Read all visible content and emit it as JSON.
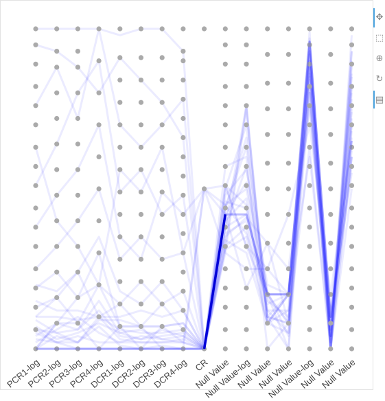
{
  "chart_data": {
    "type": "parallel-coordinates",
    "axes": [
      "PCR1-log",
      "PCR2-log",
      "PCR3-log",
      "PCR4-log",
      "DCR1-log",
      "DCR2-log",
      "DCR3-log",
      "DCR4-log",
      "CR",
      "Null Value",
      "Null Value-log",
      "Null Value",
      "Null Value",
      "Null Value-log",
      "Null Value",
      "Null Value"
    ],
    "axis_label_rotation": -40,
    "dot_color": "#aaaaaa",
    "line_color": "#2020ff",
    "highlight_color": "#0000d8",
    "grid_levels": [
      [
        0,
        0.06,
        0.13,
        0.19,
        0.25,
        0.32,
        0.38,
        0.44,
        0.51,
        0.57,
        0.63,
        0.7,
        0.76,
        0.82,
        0.89,
        0.95,
        1
      ],
      [
        0,
        0.08,
        0.16,
        0.24,
        0.32,
        0.4,
        0.48,
        0.56,
        0.64,
        0.72,
        0.8,
        0.88,
        0.93,
        1
      ],
      [
        0,
        0.08,
        0.16,
        0.24,
        0.32,
        0.4,
        0.48,
        0.56,
        0.64,
        0.72,
        0.8,
        0.88,
        0.93,
        1
      ],
      [
        0,
        0.1,
        0.2,
        0.3,
        0.4,
        0.5,
        0.6,
        0.7,
        0.8,
        0.9,
        1
      ],
      [
        0,
        0.07,
        0.14,
        0.21,
        0.28,
        0.35,
        0.42,
        0.49,
        0.56,
        0.63,
        0.7,
        0.77,
        0.84,
        0.91,
        1
      ],
      [
        0,
        0.07,
        0.14,
        0.21,
        0.28,
        0.35,
        0.42,
        0.49,
        0.56,
        0.63,
        0.7,
        0.77,
        0.84,
        0.91,
        1
      ],
      [
        0,
        0.07,
        0.14,
        0.21,
        0.28,
        0.35,
        0.42,
        0.49,
        0.56,
        0.63,
        0.7,
        0.77,
        0.84,
        0.91,
        1
      ],
      [
        0,
        0.06,
        0.12,
        0.18,
        0.24,
        0.3,
        0.36,
        0.42,
        0.48,
        0.54,
        0.6,
        0.66,
        0.72,
        0.78,
        0.84,
        0.9,
        0.93,
        1
      ],
      [
        0,
        0.5,
        1
      ],
      [
        0,
        0.06,
        0.13,
        0.19,
        0.25,
        0.32,
        0.38,
        0.44,
        0.51,
        0.57,
        0.63,
        0.7,
        0.76,
        0.82,
        0.89,
        0.95,
        1
      ],
      [
        0,
        0.06,
        0.13,
        0.19,
        0.25,
        0.32,
        0.38,
        0.44,
        0.51,
        0.57,
        0.63,
        0.7,
        0.76,
        0.82,
        0.89,
        0.95,
        1
      ],
      [
        0,
        0.08,
        0.17,
        0.25,
        0.33,
        0.42,
        0.5,
        0.58,
        0.67,
        0.75,
        0.83,
        0.92,
        1
      ],
      [
        0,
        0.08,
        0.17,
        0.25,
        0.33,
        0.42,
        0.5,
        0.58,
        0.67,
        0.75,
        0.83,
        0.92,
        1
      ],
      [
        0,
        0.06,
        0.13,
        0.19,
        0.25,
        0.32,
        0.38,
        0.44,
        0.51,
        0.57,
        0.63,
        0.7,
        0.76,
        0.82,
        0.89,
        0.95,
        1
      ],
      [
        0,
        0.08,
        0.17,
        0.25,
        0.33,
        0.42,
        0.5,
        0.58,
        0.67,
        0.75,
        0.83,
        0.92,
        1
      ],
      [
        0,
        0.06,
        0.13,
        0.19,
        0.25,
        0.32,
        0.38,
        0.44,
        0.51,
        0.57,
        0.63,
        0.7,
        0.76,
        0.82,
        0.89,
        0.95,
        1
      ]
    ],
    "highlight": [
      0,
      0,
      0,
      0,
      0,
      0,
      0,
      0,
      0,
      0.42,
      0.42,
      0.17,
      0.17,
      0.96,
      0.1,
      0.65
    ],
    "records": [
      [
        0,
        0,
        0,
        0,
        0,
        0,
        0,
        0,
        0,
        0.42,
        0.42,
        0.17,
        0.17,
        0.96,
        0.1,
        0.65
      ],
      [
        0.05,
        0.02,
        0.02,
        0.1,
        0.03,
        0.02,
        0.02,
        0.02,
        0,
        0.38,
        0.42,
        0.17,
        0.08,
        0.9,
        0.04,
        0.78
      ],
      [
        0.09,
        0.05,
        0.02,
        0.09,
        0.09,
        0.07,
        0.07,
        0.08,
        0,
        0.3,
        0.75,
        0.08,
        0.05,
        0.85,
        0,
        0.72
      ],
      [
        0.1,
        0.16,
        0.08,
        0.2,
        0.14,
        0.07,
        0,
        0,
        0,
        0.51,
        0.45,
        0.1,
        0.17,
        0.93,
        0.04,
        0.93
      ],
      [
        0,
        0.08,
        0.16,
        0.2,
        0.07,
        0,
        0.07,
        0.02,
        0.5,
        0.45,
        0.36,
        0.17,
        0,
        0.8,
        0,
        0.6
      ],
      [
        0.19,
        0.24,
        0.16,
        0.3,
        0.07,
        0.07,
        0.07,
        0.08,
        0,
        0.32,
        0.38,
        0.08,
        0.17,
        0.76,
        0.04,
        0.82
      ],
      [
        0.06,
        0.02,
        0,
        0,
        0,
        0,
        0,
        0,
        0.5,
        0.51,
        0.32,
        0.25,
        0.17,
        0.96,
        0.1,
        0.55
      ],
      [
        0,
        0,
        0,
        0,
        0,
        0,
        0,
        0,
        0,
        0.38,
        0.57,
        0.1,
        0.08,
        0.63,
        0,
        0.98
      ],
      [
        1,
        1,
        1,
        1,
        0.98,
        1,
        1,
        0.93,
        0,
        0.57,
        0.6,
        0,
        0.08,
        0.89,
        0,
        0.7
      ],
      [
        0.76,
        0.88,
        0.72,
        1,
        0.7,
        0.63,
        0.7,
        0.78,
        0,
        0.35,
        0.41,
        0.33,
        0.08,
        0.96,
        0.1,
        0.57
      ],
      [
        0.51,
        0.64,
        0.8,
        0.9,
        0.49,
        0.56,
        0.42,
        0.48,
        0,
        0.45,
        0.5,
        0.17,
        0.17,
        0.82,
        0,
        0.86
      ],
      [
        0.25,
        0.32,
        0.4,
        0.5,
        0.28,
        0.35,
        0.28,
        0.3,
        0,
        0.38,
        0.76,
        0.08,
        0.17,
        0.93,
        0,
        0.93
      ],
      [
        0.38,
        0.48,
        0.56,
        0.7,
        0.35,
        0.28,
        0.49,
        0.42,
        0.5,
        0.3,
        0.25,
        0.25,
        0.42,
        0.7,
        0.17,
        0.66
      ],
      [
        0.13,
        0.16,
        0.24,
        0.1,
        0.14,
        0.21,
        0.14,
        0.18,
        0,
        0.51,
        0.32,
        0.17,
        0.08,
        0.89,
        0.08,
        0.6
      ],
      [
        0,
        0.08,
        0.08,
        0,
        0.07,
        0.07,
        0.14,
        0.06,
        0,
        0.32,
        0.76,
        0.1,
        0,
        0.89,
        0.04,
        0.7
      ],
      [
        0.63,
        0.4,
        0.32,
        0.2,
        0.56,
        0.49,
        0.63,
        0.3,
        0.5,
        0.42,
        0.19,
        0.33,
        0.25,
        0.76,
        0.1,
        0.82
      ],
      [
        0.95,
        0.93,
        0.88,
        0.8,
        0.91,
        0.84,
        0.77,
        0.66,
        0,
        0.44,
        0.63,
        0.17,
        0.17,
        0.6,
        0,
        0.5
      ],
      [
        0.02,
        0.06,
        0.1,
        0.05,
        0.02,
        0.02,
        0.02,
        0.03,
        0,
        0.34,
        0.3,
        0.08,
        0.12,
        0.95,
        0.04,
        0.75
      ],
      [
        0.06,
        0.05,
        0.06,
        0.12,
        0.04,
        0.03,
        0.04,
        0.05,
        0,
        0.48,
        0.56,
        0.2,
        0.17,
        0.86,
        0.02,
        0.85
      ],
      [
        0.1,
        0.1,
        0.09,
        0.1,
        0.06,
        0.05,
        0.05,
        0.06,
        0,
        0.4,
        0.47,
        0.12,
        0.05,
        0.92,
        0.06,
        0.62
      ],
      [
        0.03,
        0.02,
        0.04,
        0.02,
        0.02,
        0.04,
        0.03,
        0.02,
        0,
        0.44,
        0.66,
        0.1,
        0.08,
        0.97,
        0,
        0.9
      ],
      [
        0.07,
        0.03,
        0.05,
        0.08,
        0.05,
        0.03,
        0.06,
        0.04,
        0,
        0.36,
        0.4,
        0.15,
        0.1,
        0.88,
        0.08,
        0.68
      ],
      [
        0.04,
        0.08,
        0.06,
        0.15,
        0.05,
        0.06,
        0.03,
        0.04,
        0,
        0.5,
        0.7,
        0.14,
        0.17,
        0.99,
        0.02,
        0.8
      ],
      [
        0,
        0.04,
        0.02,
        0.07,
        0.01,
        0,
        0.01,
        0,
        0,
        0.42,
        0.52,
        0.18,
        0.04,
        0.84,
        0.04,
        0.88
      ],
      [
        0.15,
        0.12,
        0.12,
        0.1,
        0.1,
        0.12,
        0.1,
        0.12,
        0,
        0.31,
        0.35,
        0.08,
        0.17,
        0.8,
        0,
        0.6
      ],
      [
        0.2,
        0.18,
        0.24,
        0.35,
        0.18,
        0.14,
        0.21,
        0.12,
        0,
        0.46,
        0.44,
        0.12,
        0.12,
        0.9,
        0.06,
        0.74
      ]
    ]
  },
  "toolbar": {
    "tools": [
      {
        "name": "pan-tool-icon",
        "glyph": "✥"
      },
      {
        "name": "box-zoom-tool-icon",
        "glyph": "⬚"
      },
      {
        "name": "wheel-zoom-tool-icon",
        "glyph": "⊕"
      },
      {
        "name": "reset-tool-icon",
        "glyph": "↻"
      },
      {
        "name": "hover-tool-icon",
        "glyph": "▤"
      }
    ]
  }
}
